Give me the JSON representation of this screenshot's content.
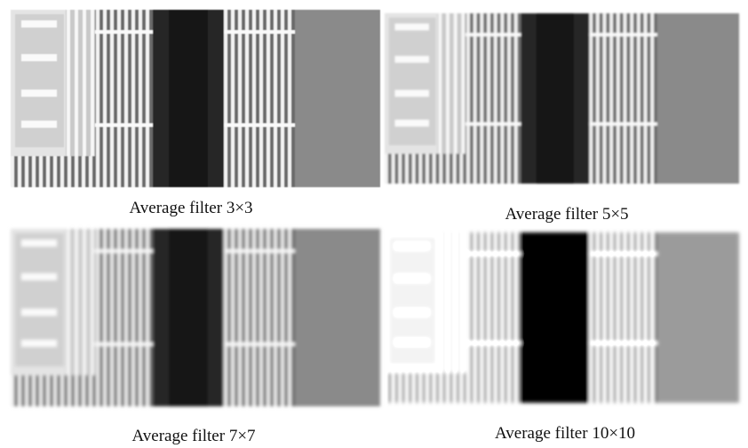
{
  "panels": [
    {
      "caption": "Average filter 3×3"
    },
    {
      "caption": "Average filter 5×5"
    },
    {
      "caption": "Average filter 7×7"
    },
    {
      "caption": "Average filter 10×10"
    }
  ]
}
